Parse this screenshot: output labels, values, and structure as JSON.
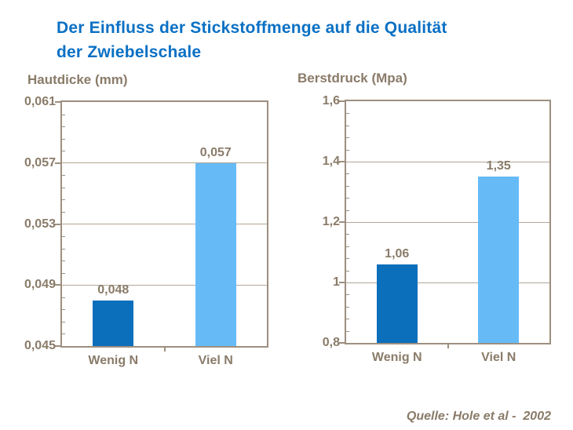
{
  "title": {
    "lines": [
      "Der Einfluss der Stickstoffmenge auf die Qualität",
      "der Zwiebelschale"
    ]
  },
  "source": {
    "text": "Quelle: Hole et al -  2002"
  },
  "colors": {
    "title_blue": "#0A70C4",
    "bar_dark_blue": "#0B6FBC",
    "bar_light_blue": "#66BBF7",
    "axis_frame": "#9D8F7F",
    "gridline": "#B3A698",
    "label_text": "#8A7B69",
    "background": "#FFFFFF"
  },
  "chart_data": [
    {
      "type": "bar",
      "title": "Hautdicke (mm)",
      "categories": [
        "Wenig N",
        "Viel N"
      ],
      "values": [
        0.048,
        0.057
      ],
      "value_labels": [
        "0,048",
        "0,057"
      ],
      "bar_colors": [
        "#0B6FBC",
        "#66BBF7"
      ],
      "ylim": [
        0.045,
        0.061
      ],
      "ytick_values": [
        0.045,
        0.049,
        0.053,
        0.057,
        0.061
      ],
      "ytick_labels": [
        "0,045",
        "0,049",
        "0,053",
        "0,057",
        "0,061"
      ],
      "minor_divisions": 5,
      "grid": true,
      "legend": "none"
    },
    {
      "type": "bar",
      "title": "Berstdruck (Mpa)",
      "categories": [
        "Wenig N",
        "Viel N"
      ],
      "values": [
        1.06,
        1.35
      ],
      "value_labels": [
        "1,06",
        "1,35"
      ],
      "bar_colors": [
        "#0B6FBC",
        "#66BBF7"
      ],
      "ylim": [
        0.8,
        1.6
      ],
      "ytick_values": [
        0.8,
        1.0,
        1.2,
        1.4,
        1.6
      ],
      "ytick_labels": [
        "0,8",
        "1",
        "1,2",
        "1,4",
        "1,6"
      ],
      "minor_divisions": 5,
      "grid": true,
      "legend": "none"
    }
  ]
}
